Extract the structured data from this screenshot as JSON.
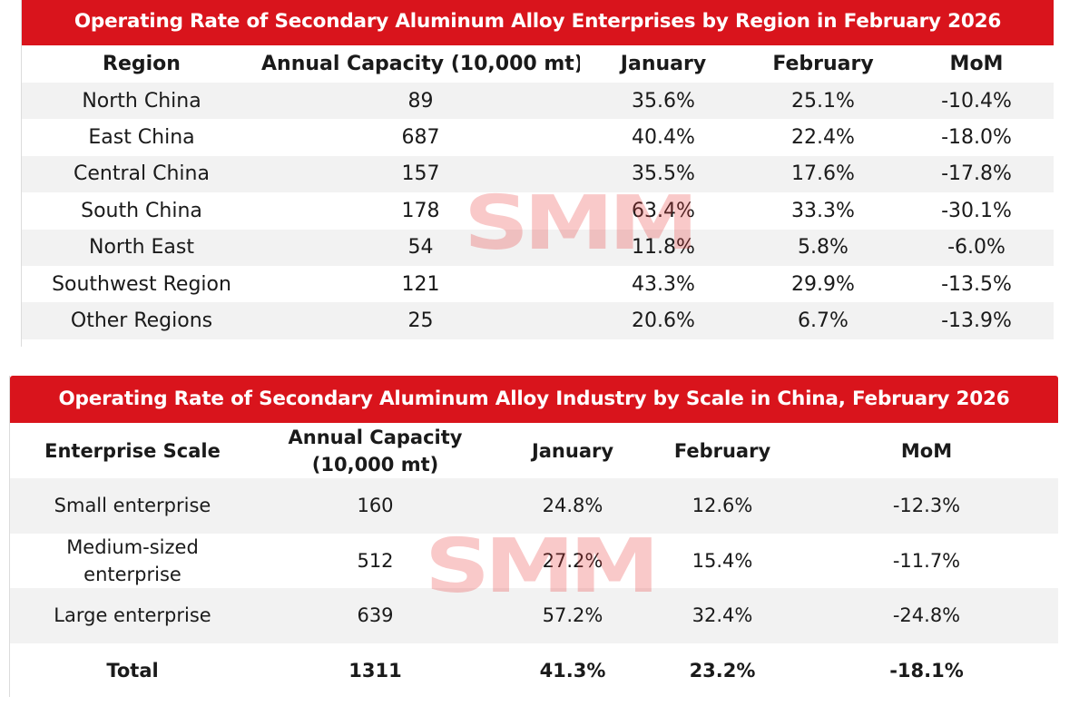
{
  "table_region": {
    "title": "Operating Rate of Secondary Aluminum Alloy Enterprises by Region in February 2026",
    "headers": [
      "Region",
      "Annual Capacity (10,000 mt)",
      "January",
      "February",
      "MoM"
    ],
    "rows": [
      [
        "North China",
        "89",
        "35.6%",
        "25.1%",
        "-10.4%"
      ],
      [
        "East China",
        "687",
        "40.4%",
        "22.4%",
        "-18.0%"
      ],
      [
        "Central China",
        "157",
        "35.5%",
        "17.6%",
        "-17.8%"
      ],
      [
        "South China",
        "178",
        "63.4%",
        "33.3%",
        "-30.1%"
      ],
      [
        "North East",
        "54",
        "11.8%",
        "5.8%",
        "-6.0%"
      ],
      [
        "Southwest Region",
        "121",
        "43.3%",
        "29.9%",
        "-13.5%"
      ],
      [
        "Other Regions",
        "25",
        "20.6%",
        "6.7%",
        "-13.9%"
      ]
    ]
  },
  "table_scale": {
    "title": "Operating Rate of Secondary Aluminum Alloy Industry by Scale in China,  February 2026",
    "headers": [
      "Enterprise Scale",
      "Annual Capacity (10,000 mt)",
      "January",
      "February",
      "MoM"
    ],
    "rows": [
      [
        "Small enterprise",
        "160",
        "24.8%",
        "12.6%",
        "-12.3%"
      ],
      [
        "Medium-sized enterprise",
        "512",
        "27.2%",
        "15.4%",
        "-11.7%"
      ],
      [
        "Large enterprise",
        "639",
        "57.2%",
        "32.4%",
        "-24.8%"
      ]
    ],
    "total": [
      "Total",
      "1311",
      "41.3%",
      "23.2%",
      "-18.1%"
    ]
  },
  "watermark": {
    "text": "SMM",
    "color": "#e83c3c"
  },
  "colors": {
    "title_bar": "#d9141c",
    "alt_row": "#f2f2f2"
  }
}
